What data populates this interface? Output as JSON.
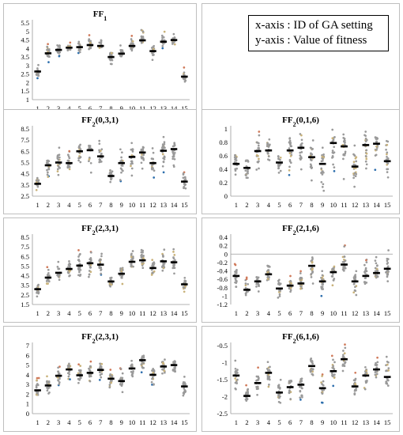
{
  "legend": {
    "line1": "x-axis : ID of GA setting",
    "line2": "y-axis : Value of fitness"
  },
  "colors": {
    "mean": "#000000",
    "dot": "#9a9a9a",
    "low": "#2e6fad",
    "high": "#d07a5a",
    "mid": "#c9b27a"
  },
  "chart_data": [
    {
      "type": "scatter",
      "title_main": "FF",
      "title_sub": "1",
      "title_args": "",
      "categories": [
        "1",
        "2",
        "3",
        "4",
        "5",
        "6",
        "7",
        "8",
        "9",
        "10",
        "11",
        "12",
        "13",
        "14",
        "15"
      ],
      "ylim": [
        1,
        5.5
      ],
      "yticks": [
        "1",
        "1.5",
        "2",
        "2.5",
        "3",
        "3.5",
        "4",
        "4.5",
        "5",
        "5.5"
      ],
      "means": [
        2.65,
        3.72,
        3.92,
        4.05,
        4.08,
        4.2,
        4.15,
        3.5,
        3.7,
        4.15,
        4.48,
        3.85,
        4.4,
        4.5,
        2.35
      ],
      "mins": [
        2.2,
        3.2,
        3.5,
        3.7,
        3.7,
        3.9,
        3.9,
        3.0,
        3.0,
        3.8,
        4.2,
        3.3,
        4.0,
        4.2,
        2.0
      ],
      "maxs": [
        3.1,
        4.3,
        4.5,
        4.4,
        4.6,
        4.8,
        4.6,
        4.1,
        4.2,
        4.8,
        5.2,
        4.4,
        5.0,
        4.9,
        2.9
      ]
    },
    {
      "type": "scatter",
      "title_main": "FF",
      "title_sub": "2",
      "title_args": "(0,3,1)",
      "categories": [
        "1",
        "2",
        "3",
        "4",
        "5",
        "6",
        "7",
        "8",
        "9",
        "10",
        "11",
        "12",
        "13",
        "14",
        "15"
      ],
      "ylim": [
        2.5,
        8.5
      ],
      "yticks": [
        "2.5",
        "3.5",
        "4.5",
        "5.5",
        "6.5",
        "7.5",
        "8.5"
      ],
      "means": [
        3.6,
        5.25,
        5.5,
        5.45,
        6.5,
        6.6,
        6.05,
        4.3,
        5.45,
        6.0,
        6.4,
        5.45,
        6.55,
        6.7,
        3.8
      ],
      "mins": [
        2.8,
        4.2,
        4.0,
        4.5,
        5.0,
        3.8,
        4.6,
        3.6,
        3.8,
        4.2,
        4.9,
        4.1,
        4.3,
        4.6,
        2.9
      ],
      "maxs": [
        4.3,
        6.2,
        7.3,
        6.6,
        7.4,
        7.8,
        7.5,
        5.4,
        6.8,
        7.6,
        7.6,
        6.8,
        8.2,
        8.2,
        4.7
      ]
    },
    {
      "type": "scatter",
      "title_main": "FF",
      "title_sub": "2",
      "title_args": "(0,1,6)",
      "categories": [
        "1",
        "2",
        "3",
        "4",
        "5",
        "6",
        "7",
        "8",
        "9",
        "10",
        "11",
        "12",
        "13",
        "14",
        "15"
      ],
      "ylim": [
        0,
        1
      ],
      "yticks": [
        "0",
        "0.2",
        "0.4",
        "0.6",
        "0.8",
        "1"
      ],
      "means": [
        0.48,
        0.42,
        0.67,
        0.68,
        0.5,
        0.68,
        0.72,
        0.58,
        0.48,
        0.79,
        0.74,
        0.44,
        0.76,
        0.78,
        0.52
      ],
      "mins": [
        0.3,
        0.02,
        0.28,
        0.3,
        0.25,
        0.3,
        0.32,
        0.2,
        0.05,
        0.3,
        0.2,
        0.05,
        0.22,
        0.35,
        0.22
      ],
      "maxs": [
        0.85,
        0.7,
        0.98,
        0.95,
        0.88,
        1.0,
        1.0,
        0.9,
        0.78,
        1.0,
        1.0,
        0.85,
        1.0,
        1.0,
        0.92
      ]
    },
    {
      "type": "scatter",
      "title_main": "FF",
      "title_sub": "2",
      "title_args": "(2,3,1)",
      "categories": [
        "1",
        "2",
        "3",
        "4",
        "5",
        "6",
        "7",
        "8",
        "9",
        "10",
        "11",
        "12",
        "13",
        "14",
        "15"
      ],
      "ylim": [
        1.5,
        8.5
      ],
      "yticks": [
        "1.5",
        "2.5",
        "3.5",
        "4.5",
        "5.5",
        "6.5",
        "7.5",
        "8.5"
      ],
      "means": [
        3.1,
        4.3,
        4.8,
        5.2,
        5.55,
        5.8,
        5.65,
        3.9,
        4.7,
        5.95,
        6.1,
        5.3,
        6.0,
        5.9,
        3.6
      ],
      "mins": [
        2.0,
        3.4,
        3.7,
        4.2,
        4.4,
        4.0,
        4.5,
        3.2,
        3.3,
        4.5,
        4.8,
        3.3,
        4.3,
        4.5,
        2.5
      ],
      "maxs": [
        3.8,
        5.4,
        6.2,
        6.5,
        7.2,
        7.0,
        7.0,
        4.7,
        6.1,
        7.2,
        7.4,
        6.4,
        8.0,
        7.6,
        4.5
      ]
    },
    {
      "type": "scatter",
      "title_main": "FF",
      "title_sub": "2",
      "title_args": "(2,1,6)",
      "categories": [
        "1",
        "2",
        "3",
        "4",
        "5",
        "6",
        "7",
        "8",
        "9",
        "10",
        "11",
        "12",
        "13",
        "14",
        "15"
      ],
      "ylim": [
        -1.2,
        0.4
      ],
      "yticks": [
        "-1.2",
        "-1",
        "-0.8",
        "-0.6",
        "-0.4",
        "-0.2",
        "0",
        "0.2",
        "0.4"
      ],
      "means": [
        -0.52,
        -0.85,
        -0.65,
        -0.48,
        -0.82,
        -0.75,
        -0.7,
        -0.28,
        -0.65,
        -0.43,
        -0.25,
        -0.65,
        -0.52,
        -0.45,
        -0.35
      ],
      "mins": [
        -0.8,
        -1.05,
        -0.95,
        -0.8,
        -1.05,
        -1.0,
        -0.98,
        -0.8,
        -1.0,
        -0.8,
        -0.6,
        -0.98,
        -0.9,
        -0.78,
        -0.7
      ],
      "maxs": [
        -0.2,
        -0.55,
        -0.3,
        -0.25,
        -0.5,
        -0.5,
        -0.35,
        0.2,
        -0.3,
        -0.2,
        0.25,
        -0.3,
        -0.1,
        -0.05,
        0.25
      ]
    },
    {
      "type": "scatter",
      "title_main": "FF",
      "title_sub": "2",
      "title_args": "(2,3,1)",
      "categories": [
        "1",
        "2",
        "3",
        "4",
        "5",
        "6",
        "7",
        "8",
        "9",
        "10",
        "11",
        "12",
        "13",
        "14",
        "15"
      ],
      "ylim": [
        0,
        7
      ],
      "yticks": [
        "0",
        "1",
        "2",
        "3",
        "4",
        "5",
        "6",
        "7"
      ],
      "means": [
        2.4,
        2.9,
        3.9,
        4.55,
        3.95,
        4.2,
        4.5,
        3.6,
        3.35,
        4.65,
        5.5,
        4.0,
        4.85,
        5.0,
        2.8
      ],
      "mins": [
        1.2,
        1.6,
        2.8,
        3.4,
        2.8,
        2.9,
        3.3,
        2.4,
        2.2,
        3.6,
        4.2,
        2.9,
        3.2,
        3.5,
        0.7
      ],
      "maxs": [
        3.9,
        3.9,
        5.0,
        5.6,
        5.1,
        5.5,
        5.5,
        4.6,
        4.7,
        5.8,
        6.6,
        5.1,
        5.9,
        6.1,
        3.9
      ]
    },
    {
      "type": "scatter",
      "title_main": "FF",
      "title_sub": "2",
      "title_args": "(6,1,6)",
      "categories": [
        "1",
        "2",
        "3",
        "4",
        "5",
        "6",
        "7",
        "8",
        "9",
        "10",
        "11",
        "12",
        "13",
        "14",
        "15"
      ],
      "ylim": [
        -2.5,
        -0.5
      ],
      "yticks": [
        "-2.5",
        "-2",
        "-1.5",
        "-1",
        "-0.5"
      ],
      "means": [
        -1.38,
        -1.98,
        -1.6,
        -1.3,
        -1.88,
        -1.72,
        -1.65,
        -1.1,
        -1.75,
        -1.25,
        -0.9,
        -1.7,
        -1.38,
        -1.2,
        -1.42
      ],
      "mins": [
        -1.9,
        -2.3,
        -2.0,
        -1.8,
        -2.3,
        -2.15,
        -2.1,
        -1.7,
        -2.2,
        -1.7,
        -1.4,
        -2.2,
        -1.85,
        -1.6,
        -1.9
      ],
      "maxs": [
        -0.9,
        -1.6,
        -1.1,
        -0.9,
        -1.4,
        -1.3,
        -1.1,
        -0.6,
        -1.3,
        -0.8,
        -0.45,
        -1.2,
        -0.9,
        -0.8,
        -0.45
      ]
    }
  ]
}
